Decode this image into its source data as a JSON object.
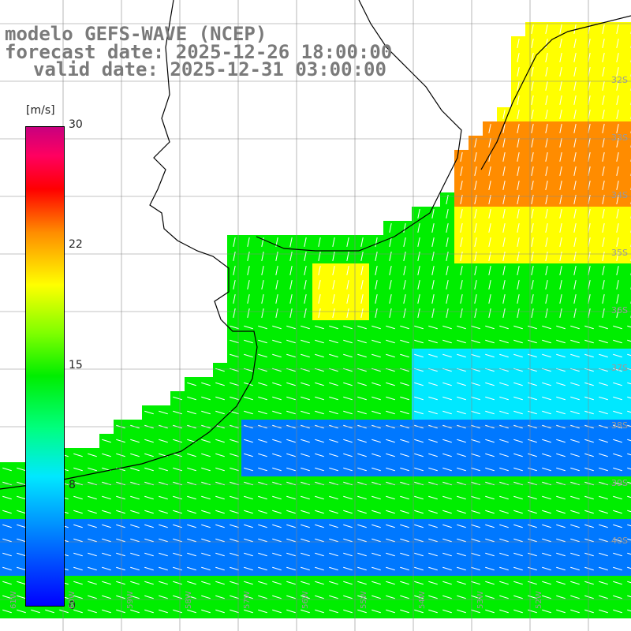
{
  "title": {
    "line1": "modelo GEFS-WAVE (NCEP)",
    "line2": "forecast date: 2025-12-26 18:00:00",
    "line3": "valid date: 2025-12-31 03:00:00"
  },
  "colorbar": {
    "unit": "[m/s]",
    "ticks": [
      {
        "label": "30",
        "value": 30
      },
      {
        "label": "22",
        "value": 22
      },
      {
        "label": "15",
        "value": 15
      },
      {
        "label": "8",
        "value": 8
      },
      {
        "label": "0",
        "value": 0
      }
    ],
    "stops": [
      "#0000ff",
      "#0078ff",
      "#00e8ff",
      "#00ff80",
      "#00ee00",
      "#80ff00",
      "#ffff00",
      "#ff8c00",
      "#ff0000",
      "#ff0060",
      "#c8007f"
    ]
  },
  "lat_labels": [
    "32S",
    "33S",
    "34S",
    "35S",
    "36S",
    "37S",
    "38S",
    "39S",
    "40S"
  ],
  "lon_labels": [
    "61W",
    "60W",
    "59W",
    "58W",
    "57W",
    "56W",
    "55W",
    "54W",
    "53W",
    "52W"
  ],
  "colors": {
    "land": "#ffffff",
    "coast": "#000000",
    "grid": "#888888",
    "arrows": "#ffffff",
    "title_text": "#7a7a7a"
  }
}
